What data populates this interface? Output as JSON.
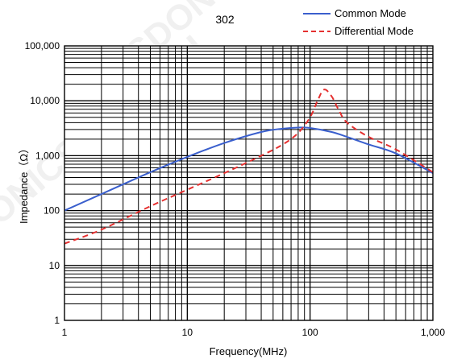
{
  "chart_data": {
    "type": "line",
    "title": "302",
    "xlabel": "Frequency(MHz)",
    "ylabel": "Impedance（Ω）",
    "xscale": "log",
    "yscale": "log",
    "xlim": [
      1,
      1000
    ],
    "ylim": [
      1,
      100000
    ],
    "grid": true,
    "legend": "top-right",
    "x_tick_labels": [
      "1",
      "10",
      "100",
      "1,000"
    ],
    "y_tick_labels": [
      "1",
      "10",
      "100",
      "1,000",
      "10,000",
      "100,000"
    ],
    "series": [
      {
        "name": "Common Mode",
        "color": "#3a5fcd",
        "style": "solid",
        "x": [
          1,
          2,
          5,
          10,
          20,
          40,
          60,
          80,
          100,
          150,
          200,
          300,
          500,
          1000
        ],
        "y": [
          100,
          200,
          500,
          950,
          1700,
          2700,
          3100,
          3250,
          3200,
          2700,
          2200,
          1600,
          1100,
          480
        ]
      },
      {
        "name": "Differential Mode",
        "color": "#e53030",
        "style": "dashed",
        "x": [
          1,
          2,
          5,
          10,
          20,
          40,
          60,
          80,
          100,
          115,
          130,
          150,
          170,
          200,
          300,
          500,
          1000
        ],
        "y": [
          25,
          45,
          120,
          240,
          480,
          1000,
          1600,
          2600,
          5000,
          10000,
          16000,
          12000,
          7000,
          4000,
          2200,
          1300,
          500
        ]
      }
    ]
  }
}
